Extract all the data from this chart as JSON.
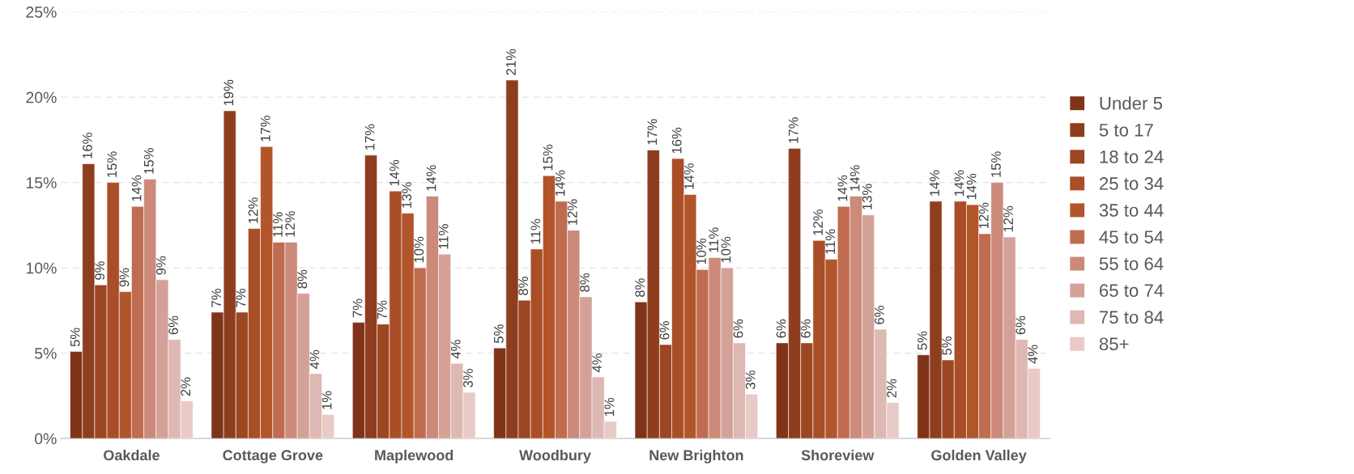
{
  "chart_data": {
    "type": "bar",
    "categories": [
      "Oakdale",
      "Cottage Grove",
      "Maplewood",
      "Woodbury",
      "New Brighton",
      "Shoreview",
      "Golden Valley"
    ],
    "series": [
      {
        "name": "Under 5",
        "color": "#7f3319",
        "values": [
          5.1,
          7.4,
          6.8,
          5.3,
          8.0,
          5.6,
          4.9
        ],
        "value_labels": [
          "5%",
          "7%",
          "7%",
          "5%",
          "8%",
          "6%",
          "5%"
        ]
      },
      {
        "name": "5 to 17",
        "color": "#8e3e1e",
        "values": [
          16.1,
          19.2,
          16.6,
          21.0,
          16.9,
          17.0,
          13.9
        ],
        "value_labels": [
          "16%",
          "19%",
          "17%",
          "21%",
          "17%",
          "17%",
          "14%"
        ]
      },
      {
        "name": "18 to 24",
        "color": "#9c4622",
        "values": [
          9.0,
          7.4,
          6.7,
          8.1,
          5.5,
          5.6,
          4.6
        ],
        "value_labels": [
          "9%",
          "7%",
          "7%",
          "8%",
          "6%",
          "6%",
          "5%"
        ]
      },
      {
        "name": "25 to 34",
        "color": "#a94e27",
        "values": [
          15.0,
          12.3,
          14.5,
          11.1,
          16.4,
          11.6,
          13.9
        ],
        "value_labels": [
          "15%",
          "12%",
          "14%",
          "11%",
          "16%",
          "12%",
          "14%"
        ]
      },
      {
        "name": "35 to 44",
        "color": "#b3552a",
        "values": [
          8.6,
          17.1,
          13.2,
          15.4,
          14.3,
          10.5,
          13.7
        ],
        "value_labels": [
          "9%",
          "17%",
          "13%",
          "15%",
          "14%",
          "11%",
          "14%"
        ]
      },
      {
        "name": "45 to 54",
        "color": "#c06c50",
        "values": [
          13.6,
          11.5,
          10.0,
          13.9,
          9.9,
          13.6,
          12.0
        ],
        "value_labels": [
          "14%",
          "11%",
          "10%",
          "14%",
          "10%",
          "14%",
          "12%"
        ]
      },
      {
        "name": "55 to 64",
        "color": "#cc8a7b",
        "values": [
          15.2,
          11.5,
          14.2,
          12.2,
          10.6,
          14.2,
          15.0
        ],
        "value_labels": [
          "15%",
          "12%",
          "14%",
          "12%",
          "11%",
          "14%",
          "15%"
        ]
      },
      {
        "name": "65 to 74",
        "color": "#d4a198",
        "values": [
          9.3,
          8.5,
          10.8,
          8.3,
          10.0,
          13.1,
          11.8
        ],
        "value_labels": [
          "9%",
          "8%",
          "11%",
          "8%",
          "10%",
          "13%",
          "12%"
        ]
      },
      {
        "name": "75 to 84",
        "color": "#deb8b2",
        "values": [
          5.8,
          3.8,
          4.4,
          3.6,
          5.6,
          6.4,
          5.8
        ],
        "value_labels": [
          "6%",
          "4%",
          "4%",
          "4%",
          "6%",
          "6%",
          "6%"
        ]
      },
      {
        "name": "85+",
        "color": "#e8cac6",
        "values": [
          2.2,
          1.4,
          2.7,
          1.0,
          2.6,
          2.1,
          4.1
        ],
        "value_labels": [
          "2%",
          "1%",
          "3%",
          "1%",
          "3%",
          "2%",
          "4%"
        ]
      }
    ],
    "ylim": [
      0,
      25
    ],
    "yticks": [
      {
        "value": 0,
        "label": "0%"
      },
      {
        "value": 5,
        "label": "5%"
      },
      {
        "value": 10,
        "label": "10%"
      },
      {
        "value": 15,
        "label": "15%"
      },
      {
        "value": 20,
        "label": "20%"
      },
      {
        "value": 25,
        "label": "25%"
      }
    ],
    "grid": "y",
    "legend": "right"
  }
}
